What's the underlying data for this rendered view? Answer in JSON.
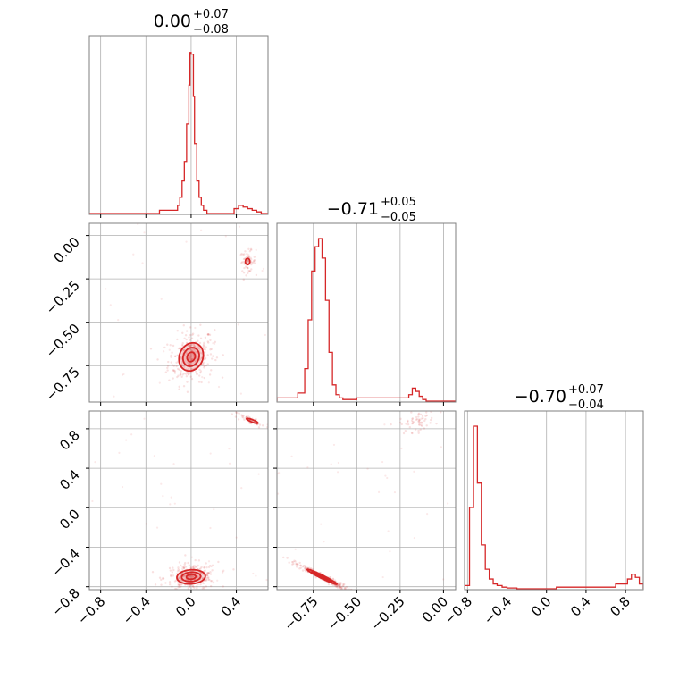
{
  "chart_data": {
    "type": "corner",
    "color": "#d62728",
    "grid": true,
    "titles": [
      {
        "value": "0.00",
        "plus": "+0.07",
        "minus": "−0.08"
      },
      {
        "value": "−0.71",
        "plus": "+0.05",
        "minus": "−0.05"
      },
      {
        "value": "−0.70",
        "plus": "+0.07",
        "minus": "−0.04"
      }
    ],
    "params": [
      {
        "range": [
          -0.9,
          0.68
        ],
        "ticks": [
          -0.8,
          -0.4,
          0.0,
          0.4
        ],
        "tick_labels": [
          "−0.8",
          "−0.4",
          "0.0",
          "0.4"
        ]
      },
      {
        "range": [
          -0.96,
          0.07
        ],
        "ticks": [
          -0.75,
          -0.5,
          -0.25,
          0.0
        ],
        "tick_labels": [
          "−0.75",
          "−0.50",
          "−0.25",
          "0.00"
        ]
      },
      {
        "range": [
          -0.83,
          0.98
        ],
        "ticks": [
          -0.8,
          -0.4,
          0.0,
          0.4,
          0.8
        ],
        "tick_labels": [
          "−0.8",
          "−0.4",
          "0.0",
          "0.4",
          "0.8"
        ]
      }
    ],
    "histograms": [
      {
        "param": 0,
        "edges": [
          -0.28,
          -0.12,
          -0.1,
          -0.08,
          -0.06,
          -0.04,
          -0.02,
          -0.01,
          0.0,
          0.02,
          0.03,
          0.05,
          0.07,
          0.09,
          0.11,
          0.14,
          0.38,
          0.42,
          0.46,
          0.5,
          0.54,
          0.58,
          0.62
        ],
        "counts": [
          0.02,
          0.05,
          0.1,
          0.2,
          0.32,
          0.55,
          0.79,
          0.99,
          0.98,
          0.72,
          0.43,
          0.2,
          0.1,
          0.05,
          0.02,
          0.0,
          0.03,
          0.05,
          0.04,
          0.03,
          0.02,
          0.01
        ]
      },
      {
        "param": 1,
        "edges": [
          -0.96,
          -0.84,
          -0.8,
          -0.78,
          -0.76,
          -0.74,
          -0.72,
          -0.7,
          -0.68,
          -0.66,
          -0.64,
          -0.62,
          -0.6,
          -0.58,
          -0.5,
          -0.2,
          -0.18,
          -0.16,
          -0.14,
          -0.12,
          -0.1,
          0.07
        ],
        "counts": [
          0.02,
          0.05,
          0.2,
          0.5,
          0.8,
          0.95,
          1.0,
          0.88,
          0.62,
          0.3,
          0.1,
          0.04,
          0.02,
          0.01,
          0.02,
          0.04,
          0.08,
          0.06,
          0.03,
          0.01,
          0.0
        ]
      },
      {
        "param": 2,
        "edges": [
          -0.83,
          -0.78,
          -0.74,
          -0.7,
          -0.66,
          -0.62,
          -0.58,
          -0.54,
          -0.5,
          -0.45,
          -0.4,
          -0.3,
          0.1,
          0.3,
          0.5,
          0.7,
          0.82,
          0.86,
          0.9,
          0.94,
          0.98
        ],
        "counts": [
          0.02,
          0.5,
          1.0,
          0.65,
          0.27,
          0.12,
          0.06,
          0.03,
          0.02,
          0.01,
          0.005,
          0.0,
          0.01,
          0.01,
          0.01,
          0.03,
          0.06,
          0.09,
          0.07,
          0.03
        ]
      }
    ],
    "pairs": [
      {
        "x_param": 0,
        "y_param": 1,
        "modes": [
          {
            "x": 0.0,
            "y": -0.7,
            "sx": 0.06,
            "sy": 0.045,
            "rho": 0.15
          },
          {
            "x": 0.5,
            "y": -0.15,
            "sx": 0.02,
            "sy": 0.018,
            "rho": 0.0
          }
        ],
        "contour_levels": [
          {
            "mode": 0,
            "scale": 0.6
          },
          {
            "mode": 0,
            "scale": 1.2
          },
          {
            "mode": 0,
            "scale": 1.8
          },
          {
            "mode": 1,
            "scale": 1.0
          }
        ]
      },
      {
        "x_param": 0,
        "y_param": 2,
        "modes": [
          {
            "x": 0.0,
            "y": -0.7,
            "sx": 0.07,
            "sy": 0.04,
            "rho": 0.1
          },
          {
            "x": 0.54,
            "y": 0.88,
            "sx": 0.05,
            "sy": 0.025,
            "rho": -0.85
          }
        ],
        "contour_levels": [
          {
            "mode": 0,
            "scale": 0.6
          },
          {
            "mode": 0,
            "scale": 1.2
          },
          {
            "mode": 0,
            "scale": 1.8
          },
          {
            "mode": 1,
            "scale": 1.0
          }
        ]
      },
      {
        "x_param": 1,
        "y_param": 2,
        "modes": [
          {
            "x": -0.7,
            "y": -0.7,
            "sx": 0.045,
            "sy": 0.04,
            "rho": -0.97
          },
          {
            "x": -0.15,
            "y": 0.87,
            "sx": 0.03,
            "sy": 0.03,
            "rho": 0.3
          }
        ],
        "contour_levels": [
          {
            "mode": 0,
            "scale": 0.7
          },
          {
            "mode": 0,
            "scale": 1.3
          },
          {
            "mode": 0,
            "scale": 1.9
          }
        ]
      }
    ]
  }
}
